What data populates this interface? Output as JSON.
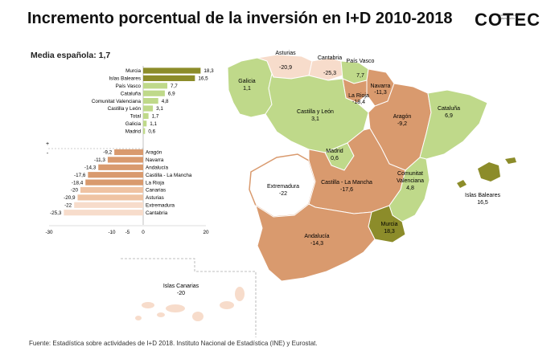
{
  "title": "Incremento porcentual de la inversión en I+D 2010-2018",
  "logo": "COTEC",
  "logo_subtext": "FUNDACIÓN PARA LA INNOVACIÓN",
  "subtitle": "Media española: 1,7",
  "source": "Fuente: Estadística sobre actividades de I+D 2018. Instituto Nacional de Estadística (INE) y Eurostat.",
  "colors": {
    "dark_olive": "#8c8c2a",
    "light_green": "#bfd98a",
    "salmon": "#d99a6e",
    "light_salmon": "#efc3a3",
    "pale_salmon": "#f7dccb",
    "gray_bar": "#cccccc"
  },
  "chart_data": {
    "type": "bar",
    "orientation": "horizontal",
    "categories": [
      "Murcia",
      "Islas Baleares",
      "País Vasco",
      "Cataluña",
      "Comunitat Valenciana",
      "Castilla y León",
      "Total",
      "Galicia",
      "Madrid",
      "Aragón",
      "Navarra",
      "Andalucía",
      "Castilla - La Mancha",
      "La Rioja",
      "Canarias",
      "Asturias",
      "Extremadura",
      "Cantabria"
    ],
    "values": [
      18.3,
      16.5,
      7.7,
      6.9,
      4.8,
      3.1,
      1.7,
      1.1,
      0.6,
      -9.2,
      -11.3,
      -14.3,
      -17.6,
      -18.4,
      -20,
      -20.9,
      -22,
      -25.3
    ],
    "value_labels": [
      "18,3",
      "16,5",
      "7,7",
      "6,9",
      "4,8",
      "3,1",
      "1,7",
      "1,1",
      "0,6",
      "-9,2",
      "-11,3",
      "-14,3",
      "-17,6",
      "-18,4",
      "-20",
      "-20,9",
      "-22",
      "-25,3"
    ],
    "xlim": [
      -30,
      20
    ],
    "tick_labels": [
      "-30",
      "-10",
      "-5",
      "0",
      "20"
    ],
    "tick_values": [
      -30,
      -10,
      -5,
      0,
      20
    ],
    "ylabel_marks": [
      "+",
      "-"
    ]
  },
  "map": {
    "regions": [
      {
        "name": "Galicia",
        "value": "1,1"
      },
      {
        "name": "Asturias",
        "value": "-20,9"
      },
      {
        "name": "Cantabria",
        "value": "-25,3"
      },
      {
        "name": "País Vasco",
        "value": "7,7"
      },
      {
        "name": "Navarra",
        "value": "-11,3"
      },
      {
        "name": "La Rioja",
        "value": "-18,4"
      },
      {
        "name": "Castilla y León",
        "value": "3,1"
      },
      {
        "name": "Aragón",
        "value": "-9,2"
      },
      {
        "name": "Cataluña",
        "value": "6,9"
      },
      {
        "name": "Madrid",
        "value": "0,6"
      },
      {
        "name": "Extremadura",
        "value": "-22"
      },
      {
        "name": "Castilla - La Mancha",
        "value": "-17,6"
      },
      {
        "name": "Comunitat Valenciana",
        "value": "4,8"
      },
      {
        "name": "Islas Baleares",
        "value": "16,5"
      },
      {
        "name": "Murcia",
        "value": "18,3"
      },
      {
        "name": "Andalucía",
        "value": "-14,3"
      },
      {
        "name": "Islas Canarias",
        "value": "-20"
      }
    ]
  }
}
